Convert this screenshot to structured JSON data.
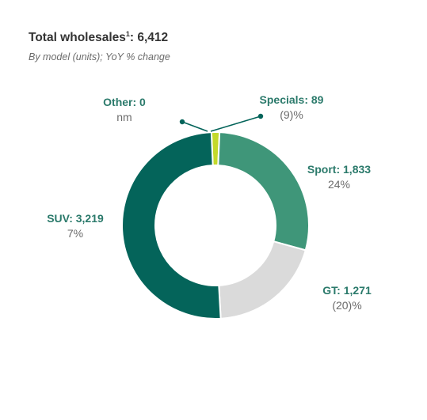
{
  "header": {
    "title": "Total wholesales",
    "title_sup": "1",
    "title_value": ": 6,412",
    "subtitle": "By model (units); YoY % change"
  },
  "chart_data": {
    "type": "pie",
    "donut": true,
    "total": 6412,
    "slices": [
      {
        "label": "Specials: 89",
        "name": "Specials",
        "value": 89,
        "change": "(9)%",
        "color": "#c3d92b"
      },
      {
        "label": "Sport: 1,833",
        "name": "Sport",
        "value": 1833,
        "change": "24%",
        "color": "#3f9679"
      },
      {
        "label": "GT: 1,271",
        "name": "GT",
        "value": 1271,
        "change": "(20)%",
        "color": "#dadada"
      },
      {
        "label": "SUV: 3,219",
        "name": "SUV",
        "value": 3219,
        "change": "7%",
        "color": "#04645a"
      },
      {
        "label": "Other: 0",
        "name": "Other",
        "value": 0,
        "change": "nm",
        "color": "#04645a"
      }
    ],
    "leader_color": "#04645a"
  }
}
